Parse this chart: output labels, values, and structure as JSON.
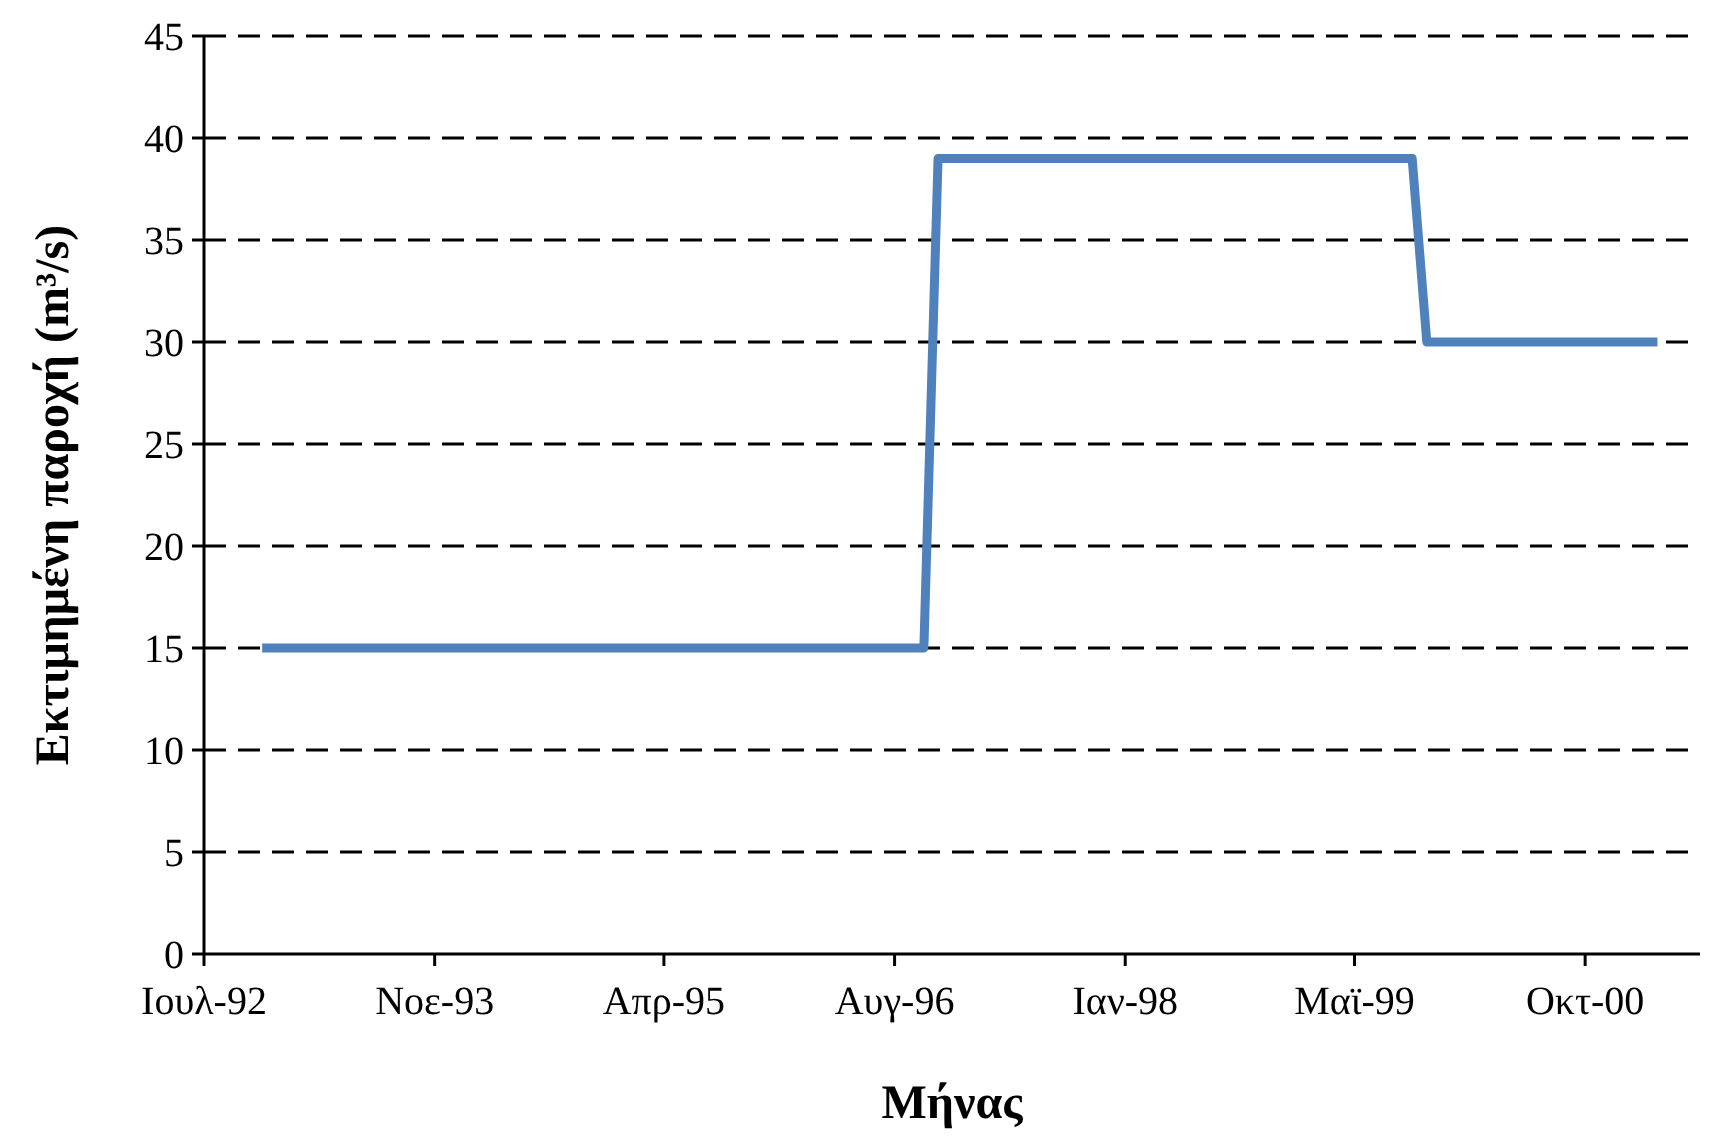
{
  "chart_data": {
    "type": "line",
    "xlabel": "Μήνας",
    "ylabel": "Εκτιμημένη παροχή (m³/s)",
    "x": [
      "1992-11",
      "1996-09",
      "1996-10",
      "1999-07",
      "1999-08",
      "2000-12"
    ],
    "series": [
      {
        "color": "#4f81bd",
        "values": [
          15,
          15,
          39,
          39,
          30,
          30
        ]
      }
    ],
    "xlim": [
      "1992-07",
      "2001-03"
    ],
    "xticks": [
      {
        "value": "1992-07",
        "label": "Ιουλ-92"
      },
      {
        "value": "1993-11",
        "label": "Νοε-93"
      },
      {
        "value": "1995-03",
        "label": "Απρ-95"
      },
      {
        "value": "1996-07",
        "label": "Αυγ-96"
      },
      {
        "value": "1997-11",
        "label": "Ιαν-98"
      },
      {
        "value": "1999-03",
        "label": "Μαϊ-99"
      },
      {
        "value": "2000-07",
        "label": "Οκτ-00"
      }
    ],
    "ylim": [
      0,
      45
    ],
    "yticks": [
      0,
      5,
      10,
      15,
      20,
      25,
      30,
      35,
      40,
      45
    ],
    "grid": "y",
    "line_style": "solid",
    "marker": "none"
  }
}
